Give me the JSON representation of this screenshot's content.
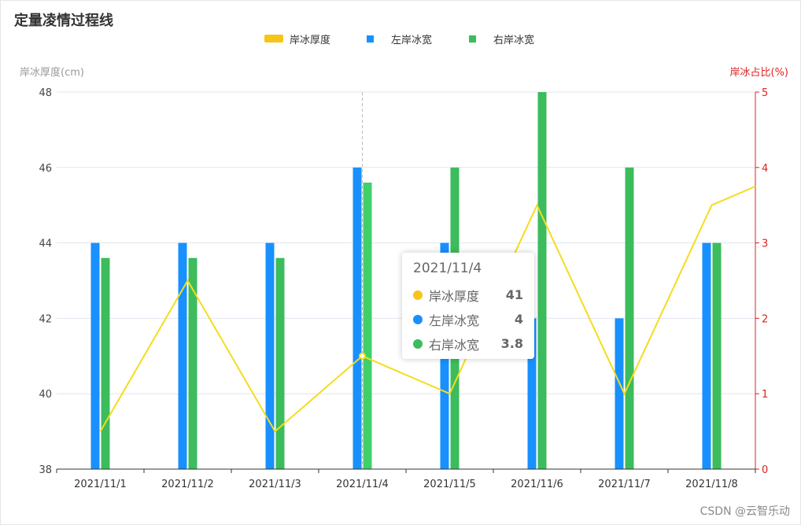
{
  "title": "定量凌情过程线",
  "legend": [
    {
      "name": "岸冰厚度",
      "color": "#f5c518",
      "shape": "rect-wide"
    },
    {
      "name": "左岸冰宽",
      "color": "#1890ff",
      "shape": "square"
    },
    {
      "name": "右岸冰宽",
      "color": "#3cbc5c",
      "shape": "square"
    }
  ],
  "axes": {
    "left_name": "岸冰厚度(cm)",
    "right_name": "岸冰占比(%)",
    "left_color": "#999999",
    "right_color": "#e02020"
  },
  "tooltip": {
    "date": "2021/11/4",
    "rows": [
      {
        "name": "岸冰厚度",
        "value": "41",
        "color": "#f5c518"
      },
      {
        "name": "左岸冰宽",
        "value": "4",
        "color": "#1890ff"
      },
      {
        "name": "右岸冰宽",
        "value": "3.8",
        "color": "#3cbc5c"
      }
    ]
  },
  "watermark": "CSDN @云智乐动",
  "chart_data": {
    "type": "bar",
    "categories": [
      "2021/11/1",
      "2021/11/2",
      "2021/11/3",
      "2021/11/4",
      "2021/11/5",
      "2021/11/6",
      "2021/11/7",
      "2021/11/8"
    ],
    "series": [
      {
        "name": "左岸冰宽",
        "type": "bar",
        "axis": "right",
        "color": "#1890ff",
        "values": [
          3,
          3,
          3,
          4,
          3,
          2,
          2,
          3
        ]
      },
      {
        "name": "右岸冰宽",
        "type": "bar",
        "axis": "right",
        "color": "#3cbc5c",
        "values": [
          2.8,
          2.8,
          2.8,
          3.8,
          4,
          5,
          4,
          3
        ]
      },
      {
        "name": "岸冰厚度",
        "type": "line",
        "axis": "left",
        "color": "#f5dc1e",
        "values": [
          39,
          43,
          39,
          41,
          40,
          45,
          40,
          45
        ],
        "extra_right_edge": 45.5
      }
    ],
    "y_left": {
      "name": "岸冰厚度(cm)",
      "min": 38,
      "max": 48,
      "ticks": [
        38,
        40,
        42,
        44,
        46,
        48
      ]
    },
    "y_right": {
      "name": "岸冰占比(%)",
      "min": 0,
      "max": 5,
      "ticks": [
        0,
        1,
        2,
        3,
        4,
        5
      ]
    },
    "highlight_category": "2021/11/4",
    "grid": true,
    "legend_position": "top-center"
  }
}
